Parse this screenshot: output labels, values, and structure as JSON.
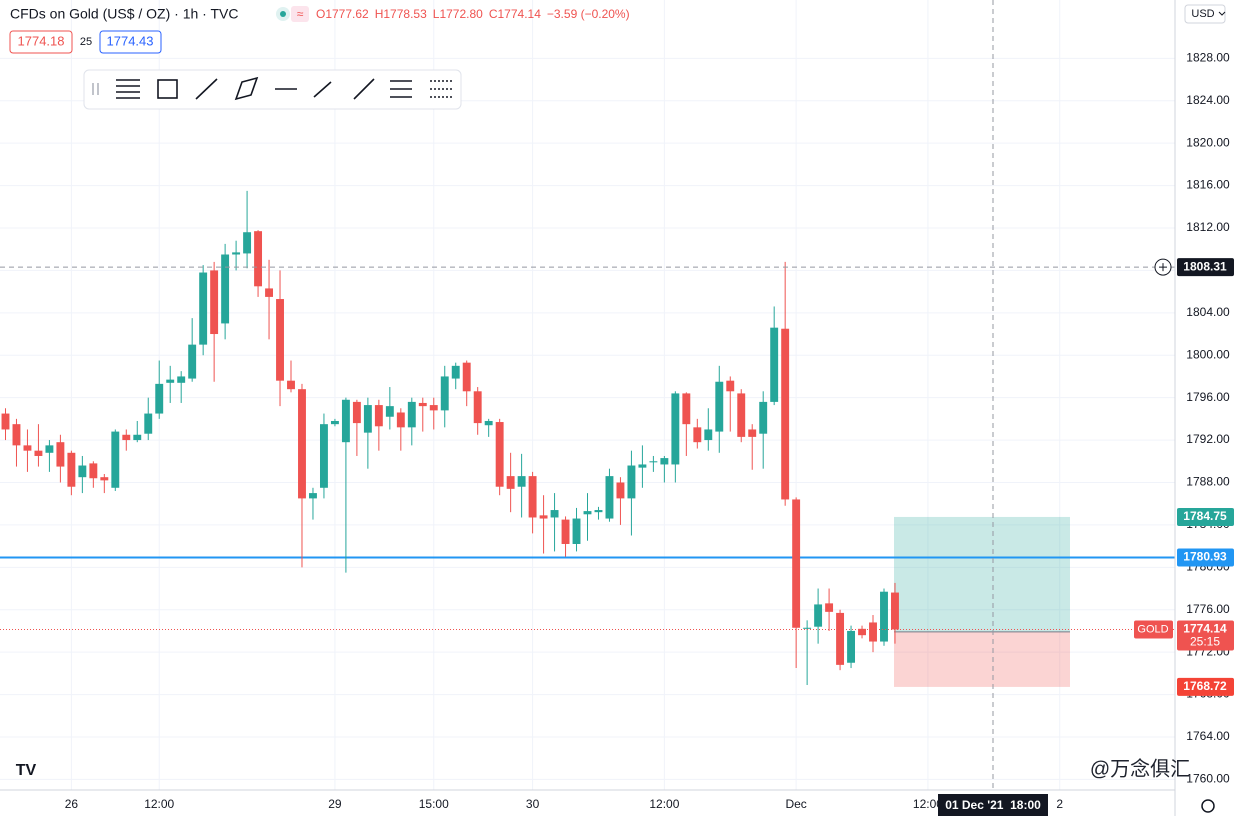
{
  "chart_data": {
    "type": "candlestick",
    "title": "CFDs on Gold (US$ / OZ) · 1h · TVC",
    "ohlc_labels": [
      "O1777.62",
      "H1778.53",
      "L1772.80",
      "C1774.14"
    ],
    "change_label": "−3.59 (−0.20%)",
    "bid": "1774.18",
    "spread": "25",
    "ask": "1774.43",
    "currency": "USD",
    "watermark": "@万念俱汇",
    "up_color": "#26a69a",
    "down_color": "#ef5350",
    "categories": [
      null,
      null,
      null,
      null,
      null,
      null,
      "26",
      null,
      null,
      null,
      null,
      null,
      null,
      null,
      "12:00",
      null,
      null,
      null,
      null,
      null,
      null,
      null,
      null,
      null,
      null,
      null,
      null,
      null,
      null,
      null,
      "29",
      null,
      null,
      null,
      null,
      null,
      null,
      null,
      null,
      "15:00",
      null,
      null,
      null,
      null,
      null,
      null,
      null,
      null,
      "30",
      null,
      null,
      null,
      null,
      null,
      null,
      null,
      null,
      null,
      null,
      null,
      "12:00",
      null,
      null,
      null,
      null,
      null,
      null,
      null,
      null,
      null,
      null,
      null,
      "Dec",
      null,
      null,
      null,
      null,
      null,
      null,
      null,
      null,
      null,
      null,
      null,
      "12:00",
      null,
      null,
      null,
      null,
      null,
      null,
      null,
      null,
      null,
      null,
      null,
      "2",
      null,
      null,
      null,
      null,
      null,
      null,
      null,
      null,
      null,
      null
    ],
    "open": [
      1794.5,
      1793.5,
      1791.5,
      1791,
      1790.8,
      1791.8,
      1790.8,
      1788.5,
      1789.8,
      1788.5,
      1787.5,
      1792.5,
      1792,
      1792.6,
      1794.5,
      1797.4,
      1797.4,
      1797.8,
      1801,
      1808,
      1803,
      1809.5,
      1809.6,
      1811.7,
      1806.3,
      1805.3,
      1797.6,
      1796.8,
      1786.5,
      1787.5,
      1793.5,
      1791.8,
      1795.6,
      1792.7,
      1795.3,
      1794.2,
      1794.6,
      1793.2,
      1795.5,
      1795.3,
      1794.8,
      1797.8,
      1799.3,
      1796.6,
      1793.4,
      1793.7,
      1788.6,
      1787.6,
      1788.6,
      1784.9,
      1784.7,
      1784.5,
      1782.2,
      1785,
      1785.2,
      1784.6,
      1788,
      1786.5,
      1789.4,
      1789.9,
      1789.7,
      1789.7,
      1796.4,
      1793.2,
      1792,
      1792.8,
      1797.6,
      1796.4,
      1793,
      1792.6,
      1795.6,
      1802.5,
      1786.4,
      1774.2,
      1774.4,
      1776.6,
      1775.7,
      1771,
      1774.2,
      1774.8,
      1773,
      1777.62,
      null,
      null,
      null,
      null,
      null,
      null,
      null,
      null,
      null,
      null,
      null,
      null,
      null,
      null,
      null,
      null,
      null,
      null,
      null,
      null,
      null,
      null,
      null,
      null,
      null
    ],
    "high": [
      1795,
      1794,
      1793,
      1793.5,
      1792,
      1792.5,
      1791,
      1790.5,
      1790,
      1788.8,
      1793,
      1793,
      1793.8,
      1796,
      1799.5,
      1799,
      1798.5,
      1803.5,
      1808.5,
      1808.8,
      1810.5,
      1810.8,
      1815.5,
      1811.8,
      1809,
      1808,
      1799.5,
      1797.3,
      1787.5,
      1794.5,
      1794,
      1796,
      1795.8,
      1796,
      1795.8,
      1797,
      1795,
      1796,
      1796,
      1796,
      1799,
      1799.3,
      1799.5,
      1797,
      1794,
      1794,
      1790.8,
      1790.7,
      1789,
      1786.8,
      1787,
      1784.8,
      1785.6,
      1787,
      1785.7,
      1789.3,
      1788.5,
      1791,
      1791.5,
      1790.5,
      1790.5,
      1796.6,
      1796.5,
      1794,
      1795,
      1799,
      1798,
      1796.8,
      1793.5,
      1796.6,
      1804.6,
      1808.8,
      1786.6,
      1775,
      1778,
      1778,
      1776,
      1774.5,
      1774.5,
      1775.5,
      1778,
      1778.53,
      null,
      null,
      null,
      null,
      null,
      null,
      null,
      null,
      null,
      null,
      null,
      null,
      null,
      null,
      null,
      null,
      null,
      null,
      null,
      null,
      null,
      null,
      null,
      null,
      null
    ],
    "low": [
      1792,
      1789.5,
      1789,
      1789.5,
      1789,
      1788,
      1786.8,
      1787,
      1787.5,
      1787,
      1787.2,
      1791,
      1791.8,
      1792,
      1794,
      1795.5,
      1795.5,
      1797.5,
      1800,
      1797.5,
      1801.5,
      1808,
      1808.2,
      1805.5,
      1801.5,
      1795.2,
      1796.5,
      1780,
      1784.5,
      1786.5,
      1793.3,
      1779.5,
      1790.5,
      1789.3,
      1791,
      1793,
      1791,
      1791.5,
      1792.8,
      1793,
      1793.2,
      1796.8,
      1795.2,
      1792.5,
      1792.3,
      1786.8,
      1785.2,
      1784.7,
      1783.2,
      1781.3,
      1781.5,
      1781,
      1781.5,
      1782.5,
      1784.5,
      1784.3,
      1784,
      1783,
      1787.5,
      1789,
      1788,
      1788,
      1790.5,
      1791.2,
      1791,
      1790.8,
      1792.8,
      1791.8,
      1789.2,
      1789.3,
      1795.3,
      1785.8,
      1770.5,
      1768.9,
      1772.8,
      1774,
      1770.3,
      1770.5,
      1773.3,
      1772,
      1772.6,
      1772.8,
      null,
      null,
      null,
      null,
      null,
      null,
      null,
      null,
      null,
      null,
      null,
      null,
      null,
      null,
      null,
      null,
      null,
      null,
      null,
      null,
      null,
      null,
      null,
      null,
      null
    ],
    "close": [
      1793,
      1791.5,
      1791,
      1790.5,
      1791.5,
      1789.5,
      1787.6,
      1789.6,
      1788.4,
      1788.2,
      1792.8,
      1792,
      1792.5,
      1794.5,
      1797.3,
      1797.7,
      1798,
      1801,
      1807.8,
      1802,
      1809.5,
      1809.7,
      1811.6,
      1806.5,
      1805.5,
      1797.6,
      1796.8,
      1786.5,
      1787,
      1793.5,
      1793.8,
      1795.8,
      1793.6,
      1795.3,
      1793.3,
      1795.2,
      1793.2,
      1795.6,
      1795.2,
      1794.8,
      1798,
      1799,
      1796.6,
      1793.6,
      1793.8,
      1787.6,
      1787.4,
      1788.6,
      1784.7,
      1784.6,
      1785.4,
      1782.2,
      1784.6,
      1785.3,
      1785.4,
      1788.6,
      1786.5,
      1789.6,
      1789.7,
      1790,
      1790.3,
      1796.4,
      1793.5,
      1791.8,
      1793,
      1797.5,
      1796.6,
      1792.3,
      1792.3,
      1795.6,
      1802.6,
      1786.4,
      1774.3,
      1774.3,
      1776.5,
      1775.8,
      1770.8,
      1774,
      1773.6,
      1773,
      1777.7,
      1774.14,
      null,
      null,
      null,
      null,
      null,
      null,
      null,
      null,
      null,
      null,
      null,
      null,
      null,
      null,
      null,
      null,
      null,
      null,
      null,
      null,
      null,
      null,
      null,
      null,
      null
    ],
    "ylim": [
      1759,
      1833.5
    ],
    "yticks": [
      {
        "value": 1760,
        "label": "1760.00"
      },
      {
        "value": 1764,
        "label": "1764.00"
      },
      {
        "value": 1768,
        "label": "1768.00"
      },
      {
        "value": 1772,
        "label": "1772.00"
      },
      {
        "value": 1776,
        "label": "1776.00"
      },
      {
        "value": 1780,
        "label": "1780.00"
      },
      {
        "value": 1784,
        "label": "1784.00"
      },
      {
        "value": 1788,
        "label": "1788.00"
      },
      {
        "value": 1792,
        "label": "1792.00"
      },
      {
        "value": 1796,
        "label": "1796.00"
      },
      {
        "value": 1800,
        "label": "1800.00"
      },
      {
        "value": 1804,
        "label": "1804.00"
      },
      {
        "value": 1808,
        "label": "1808.00"
      },
      {
        "value": 1812,
        "label": "1812.00"
      },
      {
        "value": 1816,
        "label": "1816.00"
      },
      {
        "value": 1820,
        "label": "1820.00"
      },
      {
        "value": 1824,
        "label": "1824.00"
      },
      {
        "value": 1828,
        "label": "1828.00"
      }
    ],
    "horizontal_line": {
      "value": 1780.93,
      "color": "#2196f3"
    },
    "last_price": {
      "symbol": "GOLD",
      "value": 1774.14,
      "countdown": "25:15"
    },
    "crosshair": {
      "value": 1808.31,
      "time_label": "01 Dec '21  18:00"
    },
    "position": {
      "target": 1784.75,
      "entry": 1773.91,
      "stop": 1768.72
    }
  }
}
